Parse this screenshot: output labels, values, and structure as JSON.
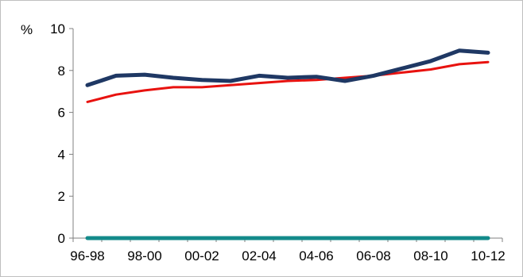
{
  "chart_data": {
    "type": "line",
    "title": "",
    "xlabel": "",
    "ylabel": "%",
    "ylim": [
      0,
      10
    ],
    "y_ticks": [
      "0",
      "2",
      "4",
      "6",
      "8",
      "10"
    ],
    "x_tick_labels": [
      "96-98",
      "98-00",
      "00-02",
      "02-04",
      "04-06",
      "06-08",
      "08-10",
      "10-12"
    ],
    "x": [
      "96-98",
      "97-99",
      "98-00",
      "99-01",
      "00-02",
      "01-03",
      "02-04",
      "03-05",
      "04-06",
      "05-07",
      "06-08",
      "07-09",
      "08-10",
      "09-11",
      "10-12"
    ],
    "grid": false,
    "legend": "none",
    "series": [
      {
        "color": "#1f3864",
        "values": [
          7.3,
          7.75,
          7.8,
          7.65,
          7.55,
          7.5,
          7.75,
          7.65,
          7.7,
          7.5,
          7.75,
          8.1,
          8.45,
          8.95,
          8.85
        ]
      },
      {
        "color": "#e8120f",
        "values": [
          6.5,
          6.85,
          7.05,
          7.2,
          7.2,
          7.3,
          7.4,
          7.5,
          7.55,
          7.65,
          7.75,
          7.9,
          8.05,
          8.3,
          8.4
        ]
      },
      {
        "color": "#138a8a",
        "values": [
          0,
          0,
          0,
          0,
          0,
          0,
          0,
          0,
          0,
          0,
          0,
          0,
          0,
          0,
          0
        ]
      }
    ]
  }
}
